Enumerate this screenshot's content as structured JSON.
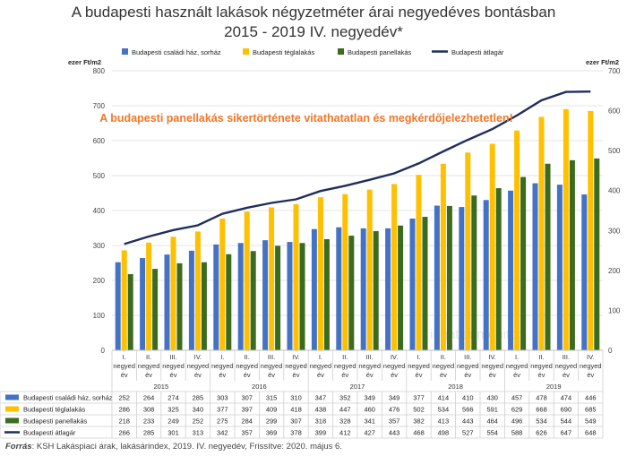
{
  "chart_data": {
    "type": "bar",
    "title_line1": "A budapesti használt lakások négyzetméter árai negyedéves bontásban",
    "title_line2": "2015 - 2019 IV. negyedév*",
    "annotation": "A budapesti panellakás sikertörténete vitathatatlan és megkérdőjelezhetetlen!",
    "ylabel_left": "ezer Ft/m2",
    "ylabel_right": "ezer Ft/m2",
    "ylim_left": [
      0,
      800
    ],
    "yticks_left": [
      0,
      100,
      200,
      300,
      400,
      500,
      600,
      700,
      800
    ],
    "ylim_right": [
      0,
      700
    ],
    "yticks_right": [
      0,
      100,
      200,
      300,
      400,
      500,
      600,
      700
    ],
    "grid": true,
    "legend_position": "top",
    "watermark": "ingatlanmonitor",
    "quarter_labels": [
      "I. negyed év",
      "II. negyed év",
      "III. negyed év",
      "IV. negyed év"
    ],
    "years": [
      "2015",
      "2016",
      "2017",
      "2018",
      "2019"
    ],
    "series": [
      {
        "name": "Budapesti családi ház, sorház",
        "kind": "bar",
        "axis": "left",
        "color": "#4472C4",
        "values": [
          252,
          264,
          274,
          285,
          303,
          307,
          315,
          310,
          347,
          352,
          349,
          349,
          377,
          414,
          410,
          430,
          457,
          478,
          474,
          446
        ]
      },
      {
        "name": "Budapesti téglalakás",
        "kind": "bar",
        "axis": "left",
        "color": "#FFC000",
        "values": [
          286,
          308,
          325,
          340,
          377,
          397,
          409,
          418,
          438,
          447,
          460,
          476,
          502,
          534,
          566,
          591,
          629,
          668,
          690,
          685
        ]
      },
      {
        "name": "Budapesti panellakás",
        "kind": "bar",
        "axis": "left",
        "color": "#3A6B1E",
        "values": [
          218,
          233,
          249,
          252,
          275,
          284,
          299,
          307,
          318,
          328,
          341,
          357,
          382,
          413,
          443,
          464,
          496,
          534,
          544,
          549
        ]
      },
      {
        "name": "Budapesti átlagár",
        "kind": "line",
        "axis": "right",
        "color": "#1F2D5C",
        "values": [
          266,
          285,
          301,
          313,
          342,
          357,
          369,
          378,
          399,
          412,
          427,
          443,
          468,
          498,
          527,
          554,
          588,
          626,
          647,
          648
        ]
      }
    ]
  },
  "source": {
    "label": "Forrás",
    "text": ": KSH Lakáspiaci árak, lakásárindex, 2019. IV. negyedév, Frissítve: 2020. május 6."
  }
}
